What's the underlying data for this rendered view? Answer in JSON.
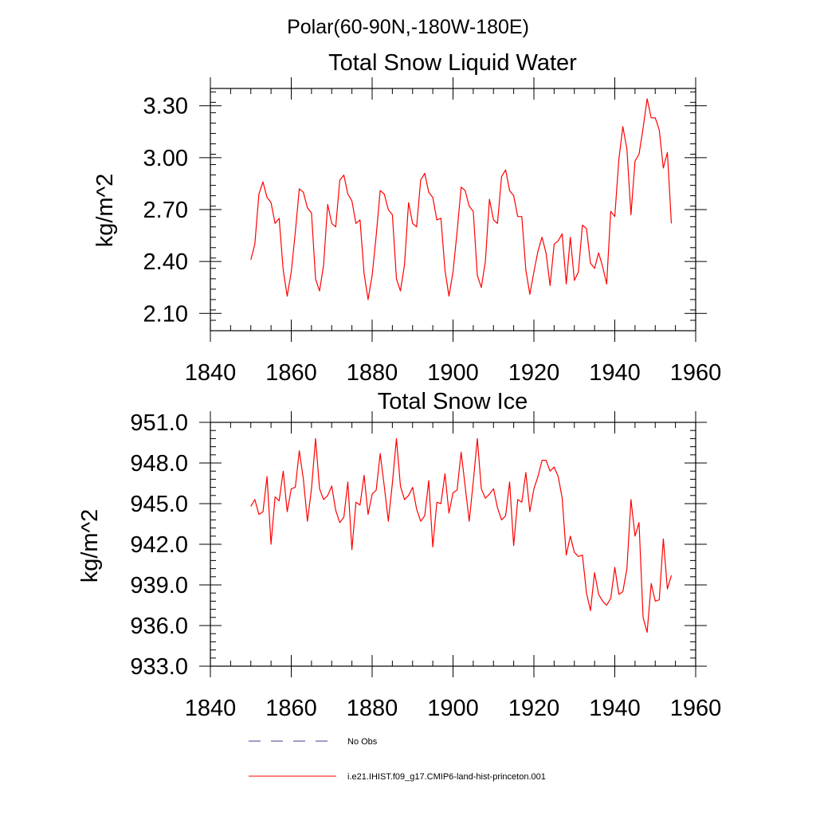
{
  "figure": {
    "region_title": "Polar(60-90N,-180W-180E)"
  },
  "chart_data": [
    {
      "type": "line",
      "title": "Total Snow Liquid Water",
      "xlabel": "",
      "ylabel": "kg/m^2",
      "xlim": [
        1840,
        1960
      ],
      "ylim": [
        2.0,
        3.4
      ],
      "xticks": [
        1840,
        1860,
        1880,
        1900,
        1920,
        1940,
        1960
      ],
      "xtick_labels": [
        "1840",
        "1860",
        "1880",
        "1900",
        "1920",
        "1940",
        "1960"
      ],
      "yticks": [
        2.1,
        2.4,
        2.7,
        3.0,
        3.3
      ],
      "ytick_labels": [
        "2.10",
        "2.40",
        "2.70",
        "3.00",
        "3.30"
      ],
      "grid": false,
      "series": [
        {
          "name": "i.e21.IHIST.f09_g17.CMIP6-land-hist-princeton.001",
          "color": "#ff0000",
          "x": [
            1850,
            1851,
            1852,
            1853,
            1854,
            1855,
            1856,
            1857,
            1858,
            1859,
            1860,
            1861,
            1862,
            1863,
            1864,
            1865,
            1866,
            1867,
            1868,
            1869,
            1870,
            1871,
            1872,
            1873,
            1874,
            1875,
            1876,
            1877,
            1878,
            1879,
            1880,
            1881,
            1882,
            1883,
            1884,
            1885,
            1886,
            1887,
            1888,
            1889,
            1890,
            1891,
            1892,
            1893,
            1894,
            1895,
            1896,
            1897,
            1898,
            1899,
            1900,
            1901,
            1902,
            1903,
            1904,
            1905,
            1906,
            1907,
            1908,
            1909,
            1910,
            1911,
            1912,
            1913,
            1914,
            1915,
            1916,
            1917,
            1918,
            1919,
            1920,
            1921,
            1922,
            1923,
            1924,
            1925,
            1926,
            1927,
            1928,
            1929,
            1930,
            1931,
            1932,
            1933,
            1934,
            1935,
            1936,
            1937,
            1938,
            1939,
            1940,
            1941,
            1942,
            1943,
            1944,
            1945,
            1946,
            1947,
            1948,
            1949,
            1950,
            1951,
            1952,
            1953,
            1954
          ],
          "y": [
            2.41,
            2.5,
            2.79,
            2.86,
            2.77,
            2.74,
            2.62,
            2.65,
            2.35,
            2.2,
            2.34,
            2.57,
            2.82,
            2.8,
            2.71,
            2.68,
            2.3,
            2.23,
            2.38,
            2.73,
            2.62,
            2.6,
            2.87,
            2.9,
            2.79,
            2.75,
            2.62,
            2.64,
            2.33,
            2.18,
            2.32,
            2.55,
            2.81,
            2.79,
            2.7,
            2.67,
            2.3,
            2.23,
            2.38,
            2.74,
            2.62,
            2.6,
            2.87,
            2.91,
            2.8,
            2.77,
            2.64,
            2.65,
            2.35,
            2.2,
            2.34,
            2.57,
            2.83,
            2.81,
            2.72,
            2.69,
            2.32,
            2.25,
            2.4,
            2.76,
            2.64,
            2.62,
            2.89,
            2.93,
            2.81,
            2.78,
            2.66,
            2.66,
            2.35,
            2.21,
            2.34,
            2.46,
            2.54,
            2.45,
            2.26,
            2.5,
            2.52,
            2.56,
            2.27,
            2.54,
            2.29,
            2.34,
            2.61,
            2.59,
            2.39,
            2.36,
            2.45,
            2.37,
            2.27,
            2.69,
            2.66,
            2.99,
            3.18,
            3.05,
            2.67,
            2.98,
            3.02,
            3.17,
            3.34,
            3.23,
            3.23,
            3.16,
            2.94,
            3.03,
            2.62
          ]
        }
      ]
    },
    {
      "type": "line",
      "title": "Total Snow Ice",
      "xlabel": "",
      "ylabel": "kg/m^2",
      "xlim": [
        1840,
        1960
      ],
      "ylim": [
        933.0,
        951.0
      ],
      "xticks": [
        1840,
        1860,
        1880,
        1900,
        1920,
        1940,
        1960
      ],
      "xtick_labels": [
        "1840",
        "1860",
        "1880",
        "1900",
        "1920",
        "1940",
        "1960"
      ],
      "yticks": [
        933,
        936,
        939,
        942,
        945,
        948,
        951
      ],
      "ytick_labels": [
        "933.0",
        "936.0",
        "939.0",
        "942.0",
        "945.0",
        "948.0",
        "951.0"
      ],
      "grid": false,
      "series": [
        {
          "name": "i.e21.IHIST.f09_g17.CMIP6-land-hist-princeton.001",
          "color": "#ff0000",
          "x": [
            1850,
            1851,
            1852,
            1853,
            1854,
            1855,
            1856,
            1857,
            1858,
            1859,
            1860,
            1861,
            1862,
            1863,
            1864,
            1865,
            1866,
            1867,
            1868,
            1869,
            1870,
            1871,
            1872,
            1873,
            1874,
            1875,
            1876,
            1877,
            1878,
            1879,
            1880,
            1881,
            1882,
            1883,
            1884,
            1885,
            1886,
            1887,
            1888,
            1889,
            1890,
            1891,
            1892,
            1893,
            1894,
            1895,
            1896,
            1897,
            1898,
            1899,
            1900,
            1901,
            1902,
            1903,
            1904,
            1905,
            1906,
            1907,
            1908,
            1909,
            1910,
            1911,
            1912,
            1913,
            1914,
            1915,
            1916,
            1917,
            1918,
            1919,
            1920,
            1921,
            1922,
            1923,
            1924,
            1925,
            1926,
            1927,
            1928,
            1929,
            1930,
            1931,
            1932,
            1933,
            1934,
            1935,
            1936,
            1937,
            1938,
            1939,
            1940,
            1941,
            1942,
            1943,
            1944,
            1945,
            1946,
            1947,
            1948,
            1949,
            1950,
            1951,
            1952,
            1953,
            1954
          ],
          "y": [
            944.8,
            945.3,
            944.2,
            944.4,
            947.0,
            942.0,
            945.5,
            945.2,
            947.4,
            944.4,
            946.1,
            946.2,
            948.9,
            946.8,
            943.7,
            946.1,
            949.8,
            946.1,
            945.3,
            945.6,
            946.3,
            944.5,
            943.6,
            944.0,
            946.6,
            941.6,
            945.1,
            944.9,
            947.1,
            944.2,
            945.7,
            946.0,
            948.7,
            946.3,
            943.7,
            946.5,
            949.8,
            946.3,
            945.3,
            945.6,
            946.2,
            944.6,
            943.7,
            944.1,
            946.7,
            941.8,
            945.1,
            945.0,
            947.2,
            944.3,
            945.8,
            946.0,
            948.8,
            946.3,
            943.7,
            946.6,
            949.8,
            946.1,
            945.4,
            945.7,
            946.1,
            944.7,
            943.8,
            944.1,
            946.6,
            941.9,
            945.3,
            945.1,
            947.3,
            944.4,
            946.1,
            947.0,
            948.2,
            948.2,
            947.4,
            947.7,
            947.0,
            945.4,
            941.2,
            942.6,
            941.4,
            941.1,
            941.2,
            938.4,
            937.1,
            939.9,
            938.3,
            937.8,
            937.5,
            938.0,
            940.3,
            938.3,
            938.5,
            940.2,
            945.3,
            942.6,
            943.6,
            936.6,
            935.5,
            939.1,
            937.8,
            937.9,
            942.4,
            938.7,
            939.7
          ]
        }
      ]
    }
  ],
  "legend": {
    "placement": "bottom",
    "entries": [
      {
        "label": "No Obs",
        "color": "#3b3f8f",
        "dash": "dashed"
      },
      {
        "label": "i.e21.IHIST.f09_g17.CMIP6-land-hist-princeton.001",
        "color": "#ff0000",
        "dash": "solid"
      }
    ]
  }
}
